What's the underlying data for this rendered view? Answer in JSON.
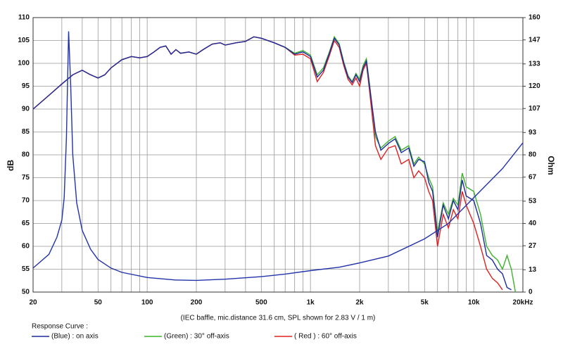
{
  "chart_data": {
    "type": "line",
    "xlabel": "(IEC baffle, mic.distance 31.6 cm, SPL shown for 2.83 V / 1 m)",
    "ylabel": "dB",
    "y2label": "Ohm",
    "legend_title": "Response Curve :",
    "xscale": "log",
    "grid": true,
    "xlim": [
      20,
      20000
    ],
    "xticks": [
      20,
      50,
      100,
      200,
      500,
      {
        "value": 1000,
        "label": "1k"
      },
      {
        "value": 2000,
        "label": "2k"
      },
      {
        "value": 5000,
        "label": "5k"
      },
      {
        "value": 10000,
        "label": "10k"
      },
      {
        "value": 20000,
        "label": "20kHz"
      }
    ],
    "xgrid": [
      30,
      40,
      60,
      70,
      80,
      90,
      300,
      400,
      600,
      700,
      800,
      900,
      3000,
      4000,
      6000,
      7000,
      8000,
      9000
    ],
    "ylim": [
      50,
      110
    ],
    "yticks": [
      50,
      55,
      60,
      65,
      70,
      75,
      80,
      85,
      90,
      95,
      100,
      105,
      110
    ],
    "y2lim": [
      0,
      160
    ],
    "y2ticks": [
      0,
      13,
      27,
      40,
      53,
      67,
      80,
      93,
      107,
      120,
      133,
      147,
      160
    ],
    "x": [
      20,
      25,
      30,
      35,
      40,
      45,
      50,
      55,
      60,
      70,
      80,
      90,
      100,
      110,
      120,
      130,
      140,
      150,
      160,
      180,
      200,
      220,
      250,
      280,
      300,
      350,
      400,
      450,
      500,
      600,
      700,
      800,
      900,
      1000,
      1100,
      1200,
      1300,
      1400,
      1500,
      1600,
      1700,
      1800,
      1900,
      2000,
      2100,
      2200,
      2300,
      2500,
      2700,
      3000,
      3300,
      3600,
      4000,
      4300,
      4600,
      5000,
      5300,
      5600,
      6000,
      6500,
      7000,
      7500,
      8000,
      8500,
      9000,
      10000,
      11000,
      12000,
      13000,
      14000,
      15000,
      16000,
      17000,
      18000
    ],
    "series": [
      {
        "name": "(Blue) : on axis",
        "color": "#1f2a9c",
        "values": [
          90,
          93,
          95.5,
          97.5,
          98.5,
          97.5,
          96.8,
          97.5,
          99,
          100.8,
          101.5,
          101.2,
          101.5,
          102.5,
          103.5,
          103.8,
          102,
          103,
          102.2,
          102.5,
          102,
          103,
          104.2,
          104.5,
          104,
          104.5,
          104.8,
          105.8,
          105.5,
          104.5,
          103.5,
          102,
          102.5,
          101.5,
          97,
          98.5,
          102,
          105.5,
          104,
          100,
          97,
          95.8,
          97.5,
          96,
          99,
          100.5,
          95,
          85,
          81,
          82.5,
          83.5,
          80.5,
          81.5,
          77.5,
          79,
          78.5,
          74,
          72,
          62,
          69,
          66,
          70,
          68,
          74.5,
          71,
          70,
          65,
          58,
          57,
          55,
          54,
          51,
          50.5,
          null
        ]
      },
      {
        "name": "(Green) : 30° off-axis",
        "color": "#3cb22c",
        "values": [
          90,
          93,
          95.5,
          97.5,
          98.5,
          97.5,
          96.8,
          97.5,
          99,
          100.8,
          101.5,
          101.2,
          101.5,
          102.5,
          103.5,
          103.8,
          102,
          103,
          102.2,
          102.5,
          102,
          103,
          104.2,
          104.5,
          104,
          104.5,
          104.8,
          105.8,
          105.5,
          104.5,
          103.5,
          102.2,
          102.8,
          101.8,
          97.5,
          99,
          102.3,
          105.8,
          104.3,
          100.3,
          97.3,
          96,
          97.8,
          96.5,
          99.5,
          101,
          95.5,
          84,
          81.5,
          83,
          84,
          81,
          82,
          78,
          79.5,
          78,
          75,
          73,
          63,
          69.5,
          67,
          70.5,
          69,
          76,
          73,
          72,
          67,
          60,
          58,
          57,
          55,
          58,
          55,
          50
        ]
      },
      {
        "name": "( Red ) : 60° off-axis",
        "color": "#e02020",
        "values": [
          90,
          93,
          95.5,
          97.5,
          98.5,
          97.5,
          96.8,
          97.5,
          99,
          100.8,
          101.5,
          101.2,
          101.5,
          102.5,
          103.5,
          103.8,
          102,
          103,
          102.2,
          102.5,
          102,
          103,
          104.2,
          104.5,
          104,
          104.5,
          104.8,
          105.8,
          105.5,
          104.5,
          103.5,
          101.8,
          102,
          101,
          96,
          98,
          101.5,
          105,
          103.5,
          99.5,
          96.5,
          95.3,
          96.8,
          95,
          98.5,
          100,
          94,
          82,
          79,
          81.5,
          82,
          78,
          79,
          75,
          76.5,
          75,
          72,
          70,
          60,
          67,
          64,
          68,
          66,
          72,
          69,
          65,
          60,
          55,
          53,
          52,
          50.5,
          null,
          null,
          null
        ]
      },
      {
        "color": "#2233aa",
        "axis": "y2",
        "x": [
          20,
          25,
          28,
          30,
          31,
          32,
          33,
          34,
          35,
          37,
          40,
          45,
          50,
          60,
          70,
          100,
          150,
          200,
          300,
          500,
          700,
          1000,
          1500,
          2000,
          3000,
          5000,
          7000,
          10000,
          15000,
          20000
        ],
        "values": [
          14,
          22,
          32,
          42,
          55,
          90,
          152,
          120,
          80,
          52,
          36,
          25,
          19,
          14,
          11.5,
          8.5,
          7,
          6.8,
          7.5,
          9,
          10.5,
          12.5,
          14.5,
          17,
          21,
          31,
          40,
          55,
          72,
          87
        ]
      }
    ]
  }
}
